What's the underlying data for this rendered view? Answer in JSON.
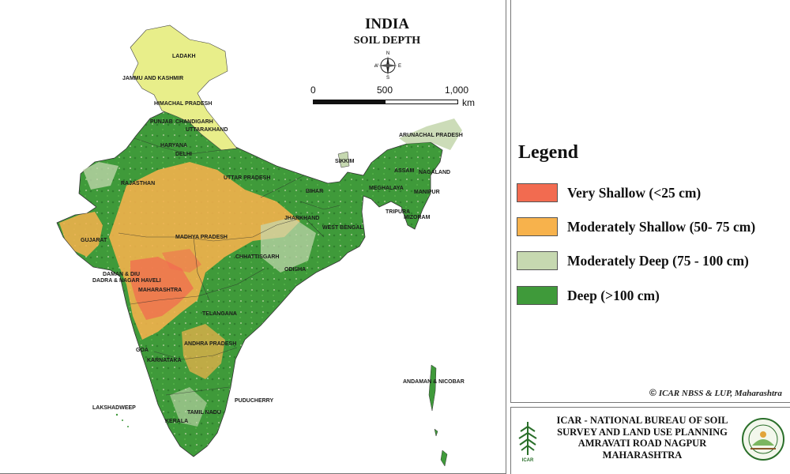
{
  "map": {
    "title": "INDIA",
    "subtitle": "SOIL DEPTH",
    "compass": {
      "n": "N",
      "s": "S",
      "e": "E",
      "w": "W"
    },
    "scale": {
      "ticks": [
        "0",
        "500",
        "1,000"
      ],
      "unit": "km"
    },
    "labels": {
      "ladakh": "LADAKH",
      "jk": "JAMMU AND KASHMIR",
      "hp": "HIMACHAL PRADESH",
      "punjab": "PUNJAB",
      "chandigarh": "CHANDIGARH",
      "uttarakhand": "UTTARAKHAND",
      "haryana": "HARYANA",
      "delhi": "DELHI",
      "up": "UTTAR PRADESH",
      "rajasthan": "RAJASTHAN",
      "sikkim": "SIKKIM",
      "arunachal": "ARUNACHAL PRADESH",
      "assam": "ASSAM",
      "nagaland": "NAGALAND",
      "meghalaya": "MEGHALAYA",
      "manipur": "MANIPUR",
      "tripura": "TRIPURA",
      "mizoram": "MIZORAM",
      "bihar": "BIHAR",
      "jharkhand": "JHARKHAND",
      "westbengal": "WEST BENGAL",
      "gujarat": "GUJARAT",
      "mp": "MADHYA PRADESH",
      "chhattisgarh": "CHHATTISGARH",
      "odisha": "ODISHA",
      "daman1": "DAMAN & DIU",
      "daman2": "DADRA & NAGAR HAVELI",
      "maharashtra": "MAHARASHTRA",
      "telangana": "TELANGANA",
      "goa": "GOA",
      "ap": "ANDHRA PRADESH",
      "karnataka": "KARNATAKA",
      "andaman": "ANDAMAN & NICOBAR",
      "puducherry": "PUDUCHERRY",
      "lakshadweep": "LAKSHADWEEP",
      "tn": "TAMIL NADU",
      "kerala": "KERALA"
    }
  },
  "legend": {
    "title": "Legend",
    "items": [
      {
        "label": "Very Shallow (<25 cm)",
        "color": "#f26b50"
      },
      {
        "label": "Moderately Shallow (50- 75 cm)",
        "color": "#f7b24c"
      },
      {
        "label": "Moderately Deep (75 - 100 cm)",
        "color": "#c6d8b0"
      },
      {
        "label": "Deep (>100 cm)",
        "color": "#3f9a3a"
      }
    ],
    "copyright": "ICAR NBSS & LUP, Maharashtra"
  },
  "footer": {
    "lines": [
      "ICAR - NATIONAL BUREAU OF SOIL",
      "SURVEY AND LAND USE PLANNING",
      "AMRAVATI ROAD NAGPUR",
      "MAHARASHTRA"
    ],
    "icar_logo_text": "ICAR"
  },
  "colors": {
    "deep": "#3f9a3a",
    "mod_deep": "#c6d8b0",
    "mod_shallow": "#f7b24c",
    "very_shallow": "#f26b50",
    "himalaya": "#e8ee8a"
  }
}
